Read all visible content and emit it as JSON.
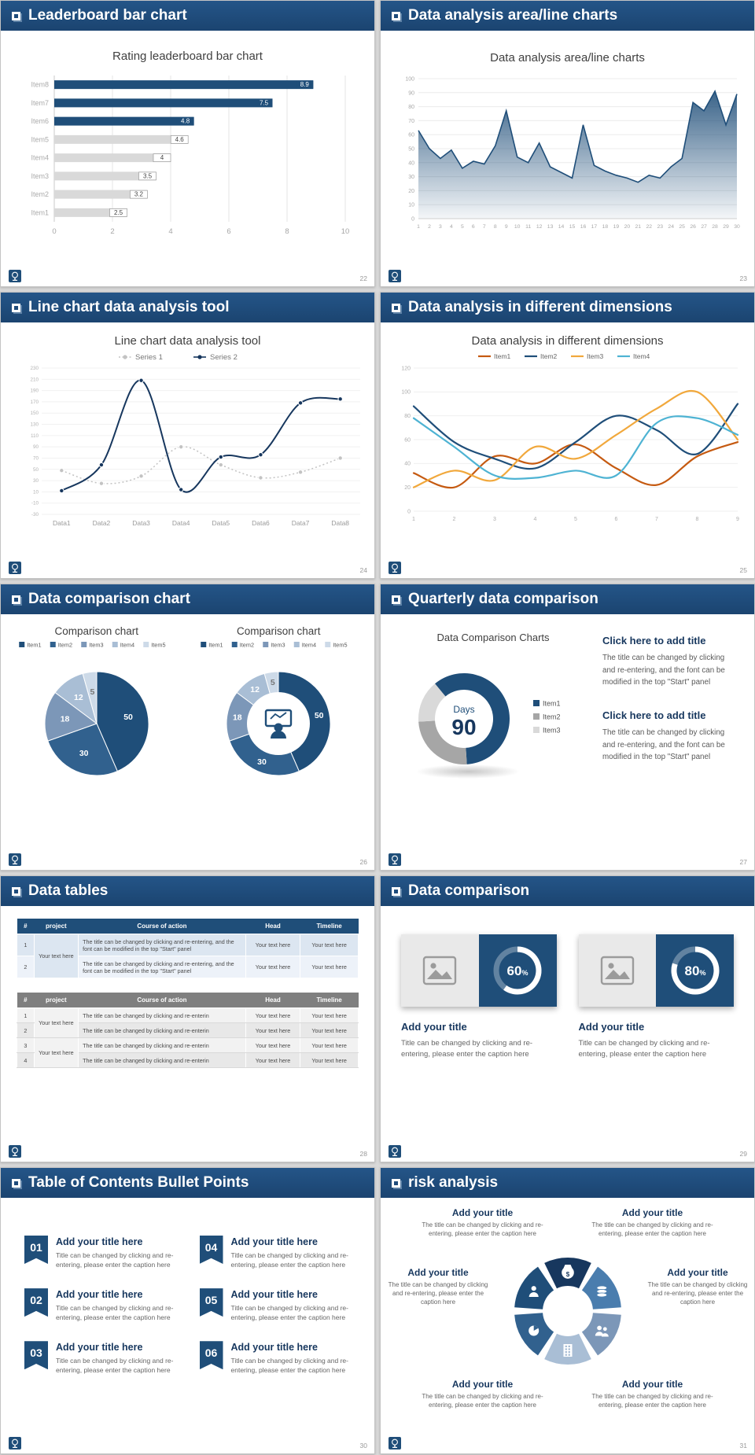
{
  "theme": {
    "header_bg": "#1F4E79",
    "navy": "#1F4E79",
    "navy_dark": "#17375E",
    "gray_bar": "#D9D9D9",
    "page_bg": "#d9d9d9"
  },
  "slides": [
    {
      "title": "Leaderboard bar chart",
      "page": "22"
    },
    {
      "title": "Data analysis area/line charts",
      "page": "23"
    },
    {
      "title": "Line chart data analysis tool",
      "page": "24"
    },
    {
      "title": "Data analysis in different dimensions",
      "page": "25"
    },
    {
      "title": "Data comparison chart",
      "page": "26"
    },
    {
      "title": "Quarterly data comparison",
      "page": "27"
    },
    {
      "title": "Data tables",
      "page": "28"
    },
    {
      "title": "Data comparison",
      "page": "29"
    },
    {
      "title": "Table of Contents Bullet Points",
      "page": "30"
    },
    {
      "title": "risk analysis",
      "page": "31"
    }
  ],
  "s6": {
    "blocks": [
      {
        "title": "Click here to add title",
        "body": "The title can be changed by clicking and re-entering, and the font can be modified in the top \"Start\" panel"
      },
      {
        "title": "Click here to add title",
        "body": "The title can be changed by clicking and re-entering, and the font can be modified in the top \"Start\" panel"
      }
    ]
  },
  "s7": {
    "columns": [
      "#",
      "project",
      "Course of action",
      "Head",
      "Timeline"
    ],
    "nums": [
      "1",
      "2",
      "3",
      "4"
    ],
    "your_text": "Your text here",
    "long_action": "The title can be changed by clicking and re-entering, and the font can be modified in the top \"Start\" panel",
    "short_action": "The title can be changed by clicking and re-enterin"
  },
  "s8": {
    "cards": [
      {
        "title": "Add your title",
        "caption": "Title can be changed by clicking and re-entering, please enter the caption here"
      },
      {
        "title": "Add your title",
        "caption": "Title can be changed by clicking and re-entering, please enter the caption here"
      }
    ]
  },
  "s9": {
    "items": [
      {
        "num": "01",
        "title": "Add your title here",
        "caption": "Title can be changed by clicking and re-entering, please enter the caption here"
      },
      {
        "num": "02",
        "title": "Add your title here",
        "caption": "Title can be changed by clicking and re-entering, please enter the caption here"
      },
      {
        "num": "03",
        "title": "Add your title here",
        "caption": "Title can be changed by clicking and re-entering, please enter the caption here"
      },
      {
        "num": "04",
        "title": "Add your title here",
        "caption": "Title can be changed by clicking and re-entering, please enter the caption here"
      },
      {
        "num": "05",
        "title": "Add your title here",
        "caption": "Title can be changed by clicking and re-entering, please enter the caption here"
      },
      {
        "num": "06",
        "title": "Add your title here",
        "caption": "Title can be changed by clicking and re-entering, please enter the caption here"
      }
    ]
  },
  "s10": {
    "blocks": [
      {
        "title": "Add your title",
        "caption": "The title can be changed by clicking and re-entering, please enter the caption here"
      },
      {
        "title": "Add your title",
        "caption": "The title can be changed by clicking and re-entering, please enter the caption here"
      },
      {
        "title": "Add your title",
        "caption": "The title can be changed by clicking and re-entering, please enter the caption here"
      },
      {
        "title": "Add your title",
        "caption": "The title can be changed by clicking and re-entering, please enter the caption here"
      },
      {
        "title": "Add your title",
        "caption": "The title can be changed by clicking and re-entering, please enter the caption here"
      },
      {
        "title": "Add your title",
        "caption": "The title can be changed by clicking and re-entering, please enter the caption here"
      }
    ]
  },
  "chart_data": [
    {
      "id": "leaderboard-bar",
      "type": "bar",
      "orientation": "horizontal",
      "title": "Rating leaderboard bar chart",
      "categories": [
        "Item8",
        "Item7",
        "Item6",
        "Item5",
        "Item4",
        "Item3",
        "Item2",
        "Item1"
      ],
      "values": [
        8.9,
        7.5,
        4.8,
        4.6,
        4,
        3.5,
        3.2,
        2.5
      ],
      "bar_colors": [
        "#1F4E79",
        "#1F4E79",
        "#1F4E79",
        "#D9D9D9",
        "#D9D9D9",
        "#D9D9D9",
        "#D9D9D9",
        "#D9D9D9"
      ],
      "xlim": [
        0,
        10
      ],
      "xticks": [
        0,
        2,
        4,
        6,
        8,
        10
      ],
      "grid": true,
      "legend_position": "none"
    },
    {
      "id": "area-line",
      "type": "area",
      "title": "Data analysis area/line charts",
      "x": [
        1,
        2,
        3,
        4,
        5,
        6,
        7,
        8,
        9,
        10,
        11,
        12,
        13,
        14,
        15,
        16,
        17,
        18,
        19,
        20,
        21,
        22,
        23,
        24,
        25,
        26,
        27,
        28,
        29,
        30
      ],
      "values": [
        63,
        50,
        43,
        49,
        36,
        41,
        39,
        52,
        77,
        44,
        40,
        54,
        37,
        33,
        29,
        67,
        38,
        34,
        31,
        29,
        26,
        31,
        29,
        37,
        43,
        83,
        77,
        91,
        67,
        89
      ],
      "ylim": [
        0,
        100
      ],
      "ytick_step": 10,
      "line_color": "#1F4E79",
      "grid": true
    },
    {
      "id": "line-tool",
      "type": "line",
      "title": "Line chart data analysis tool",
      "categories": [
        "Data1",
        "Data2",
        "Data3",
        "Data4",
        "Data5",
        "Data6",
        "Data7",
        "Data8"
      ],
      "ylim": [
        -30,
        230
      ],
      "ytick_step": 20,
      "grid": true,
      "legend_position": "top",
      "series": [
        {
          "name": "Series 1",
          "color": "#C3C3C3",
          "values": [
            48,
            25,
            38,
            90,
            58,
            35,
            45,
            70
          ]
        },
        {
          "name": "Series 2",
          "color": "#17375E",
          "values": [
            12,
            58,
            208,
            14,
            72,
            76,
            168,
            175
          ]
        }
      ]
    },
    {
      "id": "dimensions",
      "type": "line",
      "title": "Data analysis in different dimensions",
      "x": [
        1,
        2,
        3,
        4,
        5,
        6,
        7,
        8,
        9
      ],
      "ylim": [
        0,
        120
      ],
      "ytick_step": 20,
      "grid": true,
      "smooth": true,
      "legend_position": "top",
      "series": [
        {
          "name": "Item1",
          "color": "#C55A11",
          "values": [
            32,
            20,
            46,
            40,
            56,
            36,
            22,
            46,
            58
          ]
        },
        {
          "name": "Item2",
          "color": "#1F4E79",
          "values": [
            88,
            58,
            44,
            36,
            58,
            80,
            68,
            48,
            90
          ]
        },
        {
          "name": "Item3",
          "color": "#F1A83C",
          "values": [
            20,
            34,
            26,
            54,
            44,
            64,
            86,
            100,
            60
          ]
        },
        {
          "name": "Item4",
          "color": "#4EB3D3",
          "values": [
            78,
            54,
            30,
            28,
            34,
            30,
            74,
            78,
            64
          ]
        }
      ]
    },
    {
      "id": "pie-comparison",
      "type": "pie",
      "title": "Comparison chart",
      "labels": [
        "Item1",
        "Item2",
        "Item3",
        "Item4",
        "Item5"
      ],
      "values": [
        50,
        30,
        18,
        12,
        5
      ],
      "colors": [
        "#1F4E79",
        "#31618E",
        "#7C97B8",
        "#A9BED5",
        "#CDDAE8"
      ],
      "legend_position": "top"
    },
    {
      "id": "donut-comparison",
      "type": "donut",
      "title": "Comparison chart",
      "labels": [
        "Item1",
        "Item2",
        "Item3",
        "Item4",
        "Item5"
      ],
      "values": [
        50,
        30,
        18,
        12,
        5
      ],
      "colors": [
        "#1F4E79",
        "#31618E",
        "#7C97B8",
        "#A9BED5",
        "#CDDAE8"
      ],
      "center_icon": "presenter-icon",
      "legend_position": "top"
    },
    {
      "id": "quarterly-donut",
      "type": "donut",
      "title": "Data Comparison Charts",
      "labels": [
        "Item1",
        "Item2",
        "Item3"
      ],
      "values": [
        60,
        25,
        15
      ],
      "colors": [
        "#1F4E79",
        "#A6A6A6",
        "#D9D9D9"
      ],
      "center_label": "Days",
      "center_value": "90",
      "legend_position": "right"
    },
    {
      "id": "progress-60",
      "type": "donut",
      "percent": 60,
      "label": "60",
      "unit": "%",
      "ring_color": "#FFFFFF"
    },
    {
      "id": "progress-80",
      "type": "donut",
      "percent": 80,
      "label": "80",
      "unit": "%",
      "ring_color": "#FFFFFF"
    },
    {
      "id": "pinwheel",
      "type": "diagram",
      "segments": [
        {
          "icon": "money-bag-icon",
          "color": "#17375E"
        },
        {
          "icon": "coins-icon",
          "color": "#4A7DAE"
        },
        {
          "icon": "people-icon",
          "color": "#7C97B8"
        },
        {
          "icon": "building-icon",
          "color": "#A9BED5"
        },
        {
          "icon": "pie-chart-icon",
          "color": "#31618E"
        },
        {
          "icon": "person-icon",
          "color": "#1F4E79"
        }
      ]
    }
  ]
}
